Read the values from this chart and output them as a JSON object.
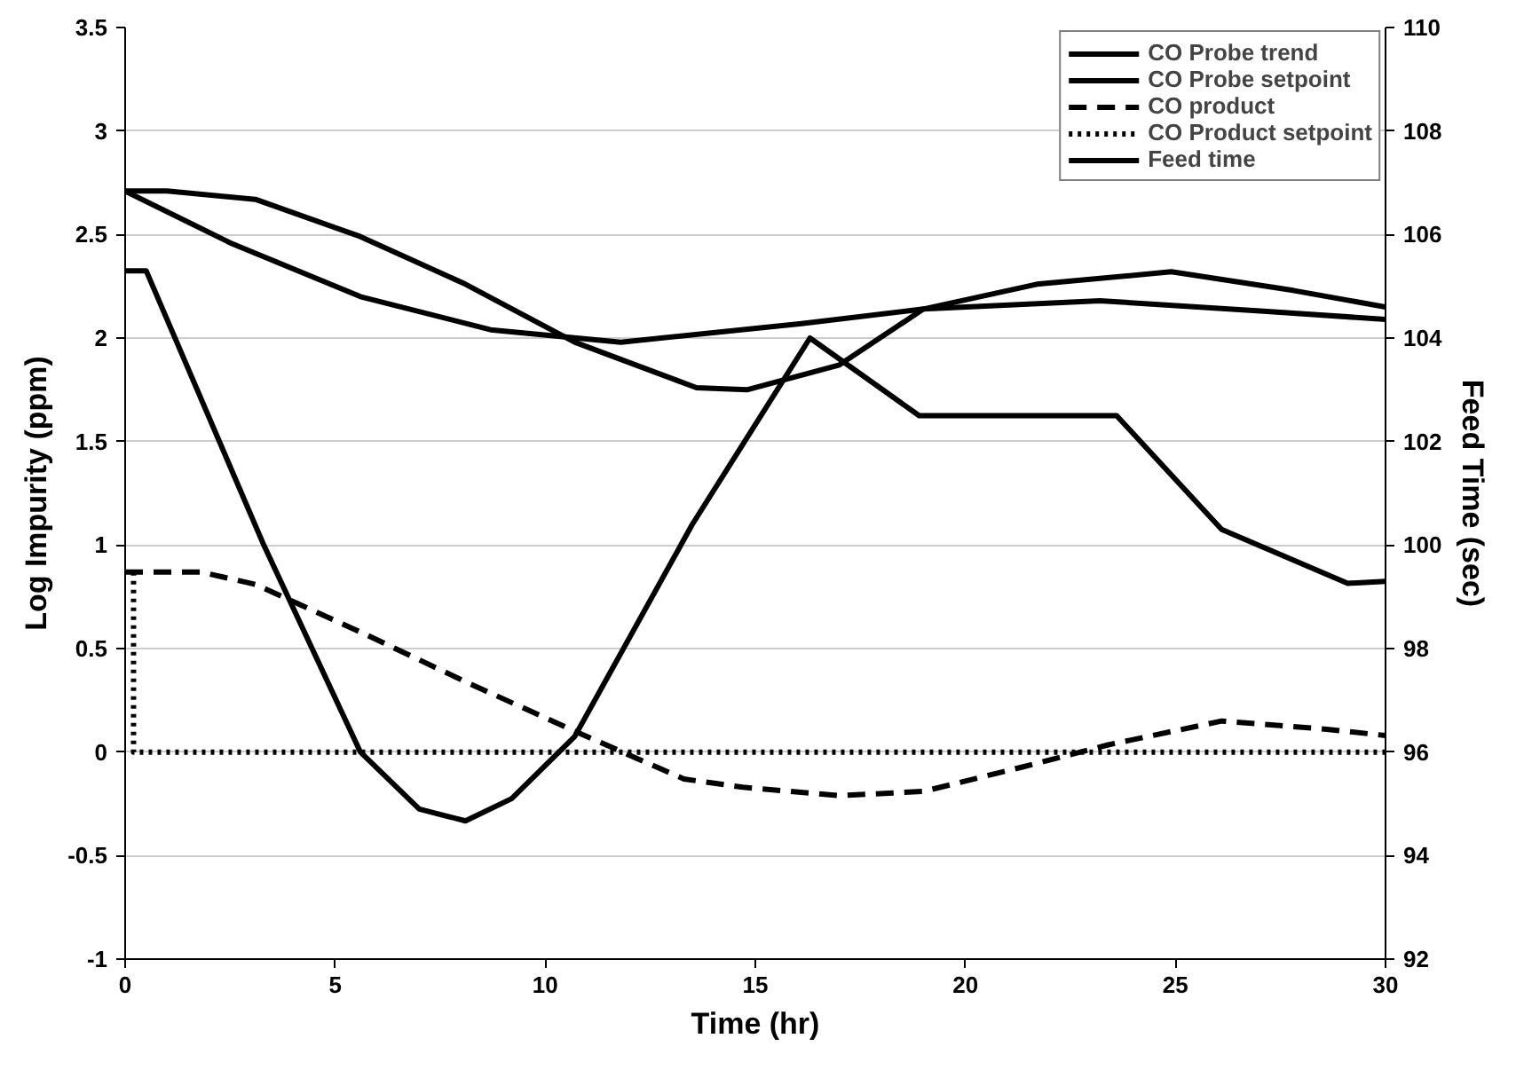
{
  "chart_data": {
    "type": "line",
    "xlabel": "Time (hr)",
    "ylabel": "Log Impurity (ppm)",
    "y2label": "Feed Time (sec)",
    "xlim": [
      0,
      30
    ],
    "xticks": [
      0,
      5,
      10,
      15,
      20,
      25,
      30
    ],
    "ylim": [
      -1,
      3.5
    ],
    "yticks": [
      -1,
      -0.5,
      0,
      0.5,
      1,
      1.5,
      2,
      2.5,
      3,
      3.5
    ],
    "y2lim": [
      92,
      110
    ],
    "y2ticks": [
      92,
      94,
      96,
      98,
      100,
      102,
      104,
      106,
      108,
      110
    ],
    "grid": "y",
    "legend": "top right",
    "marker": "none",
    "series": [
      {
        "name": "CO Probe trend",
        "color": "#000000",
        "line_style": "solid",
        "x": [
          0,
          1,
          3.1,
          5.6,
          8.1,
          10.7,
          13.6,
          14.8,
          17,
          19,
          21.7,
          24.9,
          27.8,
          30
        ],
        "values": [
          2.71,
          2.71,
          2.67,
          2.49,
          2.26,
          1.98,
          1.76,
          1.75,
          1.87,
          2.14,
          2.26,
          2.32,
          2.23,
          2.15
        ]
      },
      {
        "name": "CO Probe setpoint",
        "color": "#000000",
        "line_style": "solid",
        "x": [
          0,
          2.5,
          5.6,
          8.7,
          11.8,
          16.1,
          19,
          23.2,
          27.1,
          30
        ],
        "values": [
          2.71,
          2.46,
          2.2,
          2.04,
          1.98,
          2.07,
          2.14,
          2.18,
          2.13,
          2.09
        ]
      },
      {
        "name": "CO product",
        "color": "#000000",
        "line_style": "dashed",
        "x": [
          0,
          1.8,
          3.1,
          5.6,
          8.1,
          10.6,
          13.3,
          14.7,
          17,
          19,
          21.4,
          23.4,
          26.1,
          28.6,
          30
        ],
        "values": [
          0.87,
          0.87,
          0.81,
          0.58,
          0.34,
          0.11,
          -0.13,
          -0.17,
          -0.21,
          -0.19,
          -0.07,
          0.035,
          0.15,
          0.11,
          0.08
        ]
      },
      {
        "name": "CO Product setpoint",
        "color": "#000000",
        "line_style": "dotted",
        "x": [
          0.2,
          0.2,
          30
        ],
        "values": [
          0.87,
          0,
          0
        ]
      },
      {
        "name": "Feed time",
        "color": "#000000",
        "line_style": "solid",
        "axis": "y2",
        "x": [
          0,
          0.5,
          3.3,
          5.6,
          7,
          8.1,
          9.2,
          10.7,
          13.5,
          16.3,
          18.9,
          23.6,
          26.1,
          29.1,
          30
        ],
        "values": [
          105.3,
          105.3,
          100.0,
          96.0,
          94.9,
          94.67,
          95.1,
          96.3,
          100.4,
          104.0,
          102.5,
          102.5,
          100.3,
          99.26,
          99.3
        ]
      }
    ]
  }
}
